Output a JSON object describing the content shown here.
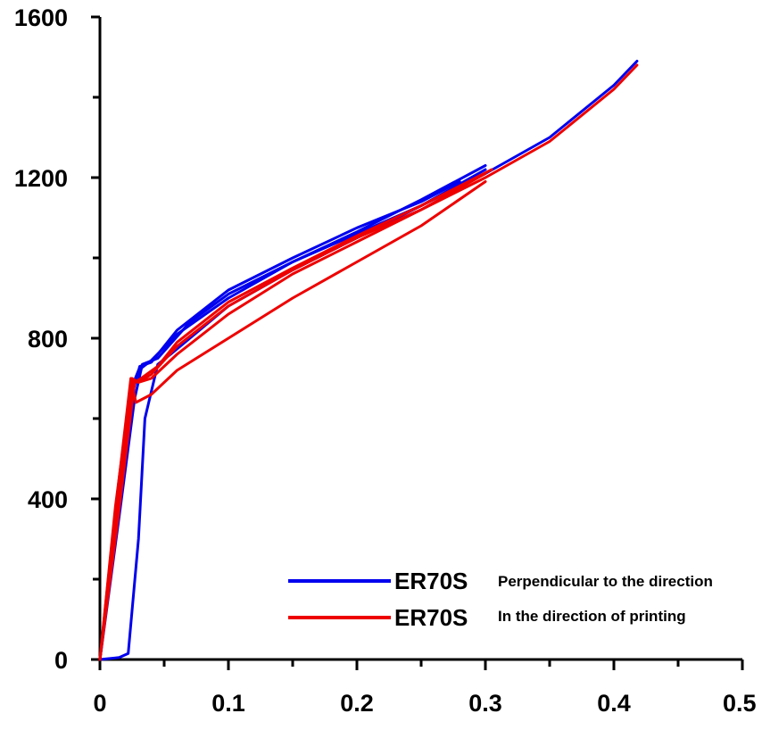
{
  "chart_data": {
    "type": "line",
    "title": "",
    "xlabel": "",
    "ylabel": "",
    "xlim": [
      0,
      0.5
    ],
    "ylim": [
      0,
      1600
    ],
    "x_ticks": [
      0,
      0.1,
      0.2,
      0.3,
      0.4,
      0.5
    ],
    "x_tick_labels": [
      "0",
      "0.1",
      "0.2",
      "0.3",
      "0.4",
      "0.5"
    ],
    "y_ticks": [
      0,
      400,
      800,
      1200,
      1600
    ],
    "y_tick_labels": [
      "0",
      "400",
      "800",
      "1200",
      "1600"
    ],
    "grid": false,
    "legend_position": "bottom-right",
    "legend": [
      {
        "main": "ER70S",
        "sub": "Perpendicular to the direction",
        "color": "#0000ee"
      },
      {
        "main": "ER70S",
        "sub": "In the direction of printing",
        "color": "#ee0000"
      }
    ],
    "series": [
      {
        "group": 0,
        "color": "#0000ee",
        "x": [
          0,
          0.015,
          0.025,
          0.03,
          0.04,
          0.06,
          0.1,
          0.15,
          0.2,
          0.25,
          0.3,
          0.35,
          0.4,
          0.418
        ],
        "y": [
          0,
          400,
          680,
          720,
          745,
          810,
          900,
          990,
          1060,
          1130,
          1210,
          1300,
          1430,
          1490
        ]
      },
      {
        "group": 0,
        "color": "#0000ee",
        "x": [
          0,
          0.015,
          0.025,
          0.031,
          0.04,
          0.06,
          0.1,
          0.15,
          0.2,
          0.25,
          0.28
        ],
        "y": [
          0,
          390,
          660,
          730,
          740,
          820,
          920,
          1000,
          1075,
          1140,
          1190
        ]
      },
      {
        "group": 0,
        "color": "#0000ee",
        "x": [
          0,
          0.016,
          0.027,
          0.033,
          0.045,
          0.07,
          0.1,
          0.15,
          0.2,
          0.25,
          0.3
        ],
        "y": [
          0,
          380,
          650,
          735,
          750,
          840,
          910,
          990,
          1065,
          1145,
          1230
        ]
      },
      {
        "group": 0,
        "color": "#0000ee",
        "x": [
          0,
          0.015,
          0.022,
          0.03,
          0.035,
          0.045,
          0.055,
          0.07,
          0.1,
          0.15,
          0.2,
          0.25,
          0.3
        ],
        "y": [
          0,
          5,
          15,
          300,
          600,
          735,
          760,
          800,
          880,
          970,
          1050,
          1130,
          1220
        ]
      },
      {
        "group": 1,
        "color": "#ee0000",
        "x": [
          0,
          0.012,
          0.025,
          0.03,
          0.04,
          0.06,
          0.1,
          0.15,
          0.2,
          0.25,
          0.3,
          0.35,
          0.4,
          0.418
        ],
        "y": [
          0,
          380,
          700,
          690,
          700,
          760,
          860,
          960,
          1040,
          1120,
          1200,
          1290,
          1420,
          1480
        ]
      },
      {
        "group": 1,
        "color": "#ee0000",
        "x": [
          0,
          0.012,
          0.024,
          0.028,
          0.04,
          0.06,
          0.1,
          0.15,
          0.2,
          0.25,
          0.3
        ],
        "y": [
          0,
          370,
          700,
          640,
          660,
          720,
          800,
          900,
          990,
          1080,
          1190
        ]
      },
      {
        "group": 1,
        "color": "#ee0000",
        "x": [
          0,
          0.013,
          0.026,
          0.03,
          0.04,
          0.06,
          0.1,
          0.15,
          0.2,
          0.25,
          0.3
        ],
        "y": [
          0,
          360,
          695,
          690,
          710,
          780,
          880,
          970,
          1050,
          1120,
          1210
        ]
      },
      {
        "group": 1,
        "color": "#ee0000",
        "x": [
          0,
          0.014,
          0.027,
          0.032,
          0.045,
          0.06,
          0.1,
          0.15,
          0.2,
          0.25,
          0.305
        ],
        "y": [
          0,
          350,
          690,
          700,
          730,
          790,
          890,
          975,
          1055,
          1130,
          1220
        ]
      }
    ]
  }
}
